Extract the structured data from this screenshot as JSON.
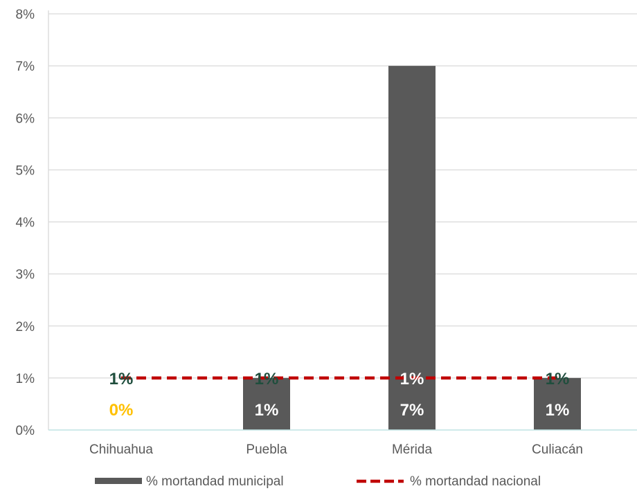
{
  "chart_data": {
    "type": "bar",
    "categories": [
      "Chihuahua",
      "Puebla",
      "Mérida",
      "Culiacán"
    ],
    "series": [
      {
        "name": "% mortandad municipal",
        "type": "bar",
        "values": [
          0,
          1,
          7,
          1
        ],
        "labels": [
          "0%",
          "1%",
          "7%",
          "1%"
        ],
        "color": "#595959",
        "label_colors": [
          "#FFC000",
          "#FFFFFF",
          "#FFFFFF",
          "#FFFFFF"
        ]
      },
      {
        "name": "% mortandad nacional",
        "type": "line",
        "style": "dashed",
        "values": [
          1,
          1,
          1,
          1
        ],
        "labels": [
          "1%",
          "1%",
          "1%",
          "1%"
        ],
        "color": "#C00000",
        "label_colors": [
          "#1F4E3D",
          "#1F4E3D",
          "#FFFFFF",
          "#1F4E3D"
        ]
      }
    ],
    "y_ticks": [
      "0%",
      "1%",
      "2%",
      "3%",
      "4%",
      "5%",
      "6%",
      "7%",
      "8%"
    ],
    "ylim": [
      0,
      8
    ],
    "grid": true,
    "legend": "bottom",
    "title": "",
    "xlabel": "",
    "ylabel": ""
  }
}
